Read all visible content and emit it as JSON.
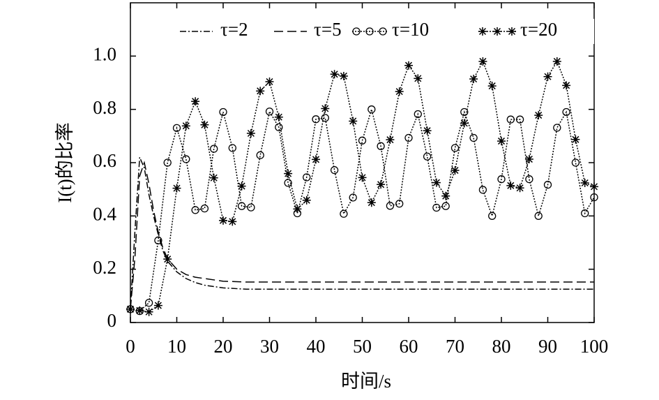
{
  "chart_data": {
    "type": "line",
    "xlabel": "时间/s",
    "ylabel": "I(t)的比率",
    "xlim": [
      0,
      100
    ],
    "ylim": [
      0,
      1.2
    ],
    "xticks": [
      0,
      10,
      20,
      30,
      40,
      50,
      60,
      70,
      80,
      90,
      100
    ],
    "yticks": [
      0,
      0.2,
      0.4,
      0.6,
      0.8,
      {
        "value": 1,
        "label": "1.0"
      }
    ],
    "grid": false,
    "legend": "top",
    "series": [
      {
        "name": "τ=2",
        "color": "#000000",
        "style": "dashdot",
        "x": [
          0,
          1,
          2,
          3,
          4,
          5,
          6,
          7,
          8,
          10,
          12,
          14,
          16,
          18,
          20,
          25,
          30,
          40,
          50,
          60,
          70,
          80,
          90,
          100
        ],
        "values": [
          0.05,
          0.35,
          0.62,
          0.58,
          0.48,
          0.4,
          0.33,
          0.27,
          0.23,
          0.19,
          0.165,
          0.15,
          0.14,
          0.135,
          0.13,
          0.125,
          0.125,
          0.125,
          0.125,
          0.125,
          0.125,
          0.125,
          0.125,
          0.125
        ]
      },
      {
        "name": "τ=5",
        "color": "#000000",
        "style": "dashed",
        "x": [
          0,
          1,
          2,
          3,
          4,
          5,
          6,
          7,
          8,
          10,
          12,
          14,
          16,
          18,
          20,
          25,
          30,
          40,
          50,
          60,
          70,
          80,
          90,
          100
        ],
        "values": [
          0.05,
          0.25,
          0.55,
          0.6,
          0.52,
          0.42,
          0.34,
          0.28,
          0.24,
          0.2,
          0.18,
          0.17,
          0.165,
          0.16,
          0.155,
          0.152,
          0.152,
          0.152,
          0.152,
          0.152,
          0.152,
          0.152,
          0.152,
          0.152
        ]
      },
      {
        "name": "τ=10",
        "color": "#000000",
        "style": "dotted",
        "marker": "circle",
        "x": [
          0,
          2,
          4,
          6,
          8,
          10,
          12,
          14,
          16,
          18,
          20,
          22,
          24,
          26,
          28,
          30,
          32,
          34,
          36,
          38,
          40,
          42,
          44,
          46,
          48,
          50,
          52,
          54,
          56,
          58,
          60,
          62,
          64,
          66,
          68,
          70,
          72,
          74,
          76,
          78,
          80,
          82,
          84,
          86,
          88,
          90,
          92,
          94,
          96,
          98,
          100
        ],
        "values": [
          0.05,
          0.043,
          0.074,
          0.308,
          0.6,
          0.73,
          0.613,
          0.422,
          0.428,
          0.652,
          0.79,
          0.655,
          0.437,
          0.432,
          0.628,
          0.792,
          0.733,
          0.524,
          0.41,
          0.545,
          0.763,
          0.768,
          0.572,
          0.408,
          0.469,
          0.683,
          0.8,
          0.662,
          0.438,
          0.446,
          0.693,
          0.782,
          0.623,
          0.431,
          0.437,
          0.655,
          0.79,
          0.693,
          0.498,
          0.4,
          0.538,
          0.762,
          0.762,
          0.538,
          0.4,
          0.517,
          0.731,
          0.79,
          0.6,
          0.41,
          0.47
        ]
      },
      {
        "name": "τ=20",
        "color": "#000000",
        "style": "dotted",
        "marker": "star",
        "x": [
          0,
          2,
          4,
          6,
          8,
          10,
          12,
          14,
          16,
          18,
          20,
          22,
          24,
          26,
          28,
          30,
          32,
          34,
          36,
          38,
          40,
          42,
          44,
          46,
          48,
          50,
          52,
          54,
          56,
          58,
          60,
          62,
          64,
          66,
          68,
          70,
          72,
          74,
          76,
          78,
          80,
          82,
          84,
          86,
          88,
          90,
          92,
          94,
          96,
          98,
          100
        ],
        "values": [
          0.05,
          0.045,
          0.04,
          0.064,
          0.238,
          0.504,
          0.738,
          0.83,
          0.742,
          0.543,
          0.383,
          0.379,
          0.512,
          0.71,
          0.869,
          0.904,
          0.771,
          0.559,
          0.426,
          0.459,
          0.612,
          0.803,
          0.932,
          0.925,
          0.756,
          0.544,
          0.45,
          0.518,
          0.686,
          0.867,
          0.965,
          0.916,
          0.72,
          0.525,
          0.475,
          0.571,
          0.748,
          0.914,
          0.98,
          0.888,
          0.681,
          0.514,
          0.505,
          0.613,
          0.778,
          0.923,
          0.98,
          0.89,
          0.687,
          0.524,
          0.51
        ]
      }
    ]
  }
}
